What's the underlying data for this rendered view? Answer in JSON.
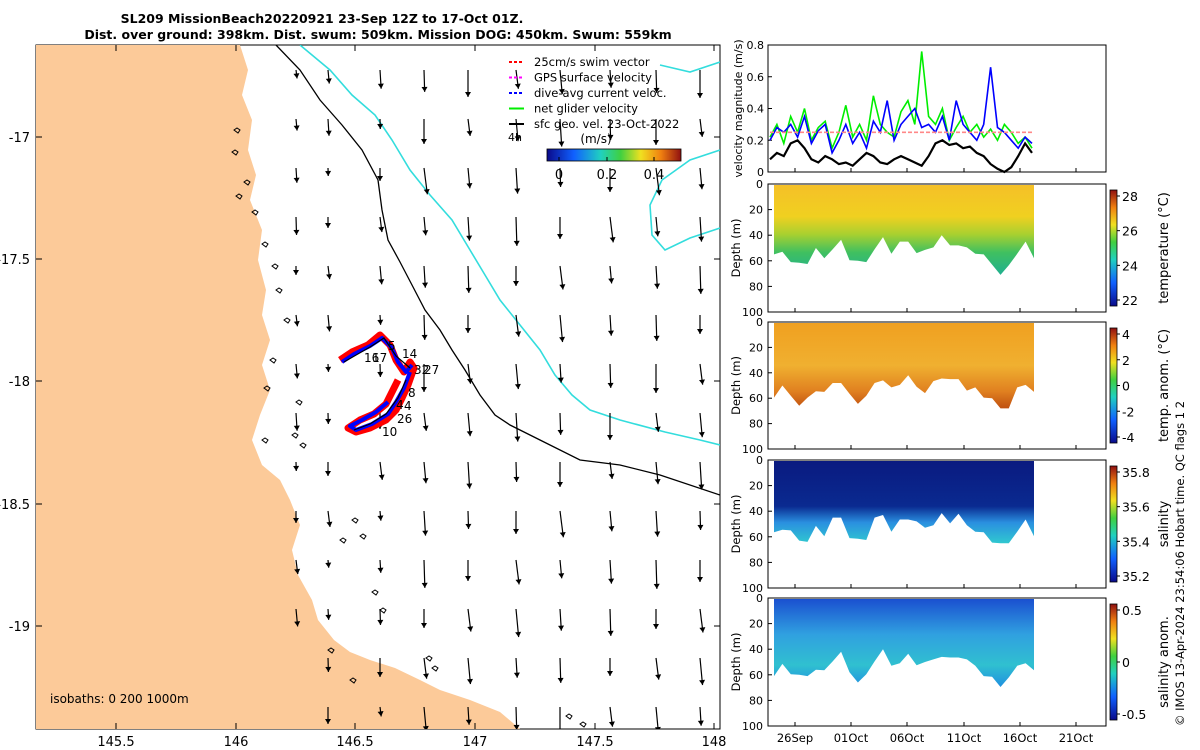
{
  "title": {
    "line1": "SL209 MissionBeach20220921 23-Sep 12Z to 17-Oct 01Z.",
    "line2": "Dist. over ground: 398km. Dist. swum: 509km. Mission DOG: 450km. Swum: 559km"
  },
  "colors": {
    "land": "#fcca99",
    "swim_vector": "#ff0000",
    "gps_velocity": "#ff00ff",
    "current_velocity": "#0000ff",
    "net_velocity": "#00ee00",
    "sfc_vector": "#000000",
    "isobath_shallow": "#000000",
    "isobath_deep": "#33dddd"
  },
  "map": {
    "x_ticks": [
      "145.5",
      "146",
      "146.5",
      "147",
      "147.5",
      "148"
    ],
    "y_ticks": [
      "-17",
      "-17.5",
      "-18",
      "-18.5",
      "-19"
    ],
    "legend": [
      {
        "label": "25cm/s swim vector",
        "color": "#ff0000"
      },
      {
        "label": "GPS surface velocity",
        "color": "#ff00ff"
      },
      {
        "label": "dive-avg current veloc.",
        "color": "#0000ff"
      },
      {
        "label": "net glider velocity",
        "color": "#00ee00"
      },
      {
        "label": "sfc geo. vel. 23-Oct-2022",
        "color": "#000000"
      }
    ],
    "arrow_scale_label": "4h",
    "colorbar_unit": "(m/s)",
    "colorbar_ticks": [
      "0",
      "0.2",
      "0.4"
    ],
    "isobaths_label": "isobaths: 0   200  1000m",
    "track_day_labels": [
      "5",
      "16",
      "17",
      "14",
      "32",
      "27",
      "8",
      "4",
      "4",
      "26",
      "10"
    ]
  },
  "chart_data": [
    {
      "type": "line",
      "title": "velocity magnitude",
      "ylabel": "velocity magnitude (m/s)",
      "ylim": [
        0,
        0.8
      ],
      "y_ticks": [
        "0",
        "0.2",
        "0.4",
        "0.6",
        "0.8"
      ],
      "series": [
        {
          "name": "net glider velocity",
          "color": "#00ee00",
          "values": [
            0.22,
            0.3,
            0.18,
            0.35,
            0.25,
            0.4,
            0.2,
            0.28,
            0.32,
            0.15,
            0.25,
            0.42,
            0.22,
            0.3,
            0.2,
            0.48,
            0.3,
            0.25,
            0.22,
            0.38,
            0.45,
            0.3,
            0.76,
            0.35,
            0.3,
            0.4,
            0.2,
            0.28,
            0.35,
            0.25,
            0.3,
            0.22,
            0.27,
            0.2,
            0.3,
            0.25,
            0.18,
            0.22,
            0.15
          ]
        },
        {
          "name": "dive-avg current",
          "color": "#0000ff",
          "values": [
            0.2,
            0.28,
            0.25,
            0.3,
            0.22,
            0.35,
            0.18,
            0.26,
            0.3,
            0.12,
            0.2,
            0.3,
            0.18,
            0.25,
            0.15,
            0.32,
            0.25,
            0.45,
            0.2,
            0.3,
            0.35,
            0.4,
            0.28,
            0.3,
            0.25,
            0.35,
            0.2,
            0.45,
            0.3,
            0.25,
            0.2,
            0.3,
            0.66,
            0.28,
            0.25,
            0.2,
            0.15,
            0.22,
            0.18
          ]
        },
        {
          "name": "sfc geo. velocity",
          "color": "#000000",
          "values": [
            0.08,
            0.12,
            0.1,
            0.18,
            0.2,
            0.15,
            0.08,
            0.06,
            0.1,
            0.08,
            0.05,
            0.06,
            0.04,
            0.08,
            0.12,
            0.1,
            0.06,
            0.05,
            0.08,
            0.1,
            0.08,
            0.06,
            0.04,
            0.1,
            0.18,
            0.2,
            0.17,
            0.18,
            0.15,
            0.16,
            0.12,
            0.1,
            0.05,
            0.02,
            0.0,
            0.03,
            0.1,
            0.18,
            0.12
          ]
        },
        {
          "name": "25cm/s swim",
          "color": "#ff8888",
          "values": [
            0.25,
            0.25,
            0.25,
            0.25,
            0.25,
            0.25,
            0.25,
            0.25,
            0.25,
            0.25,
            0.25,
            0.25,
            0.25,
            0.25,
            0.25,
            0.25,
            0.25,
            0.25,
            0.25,
            0.25,
            0.25,
            0.25,
            0.25,
            0.25,
            0.25,
            0.25,
            0.25,
            0.25,
            0.25,
            0.25,
            0.25,
            0.25,
            0.25,
            0.25,
            0.25,
            0.25,
            0.25,
            0.25,
            0.25
          ]
        }
      ]
    },
    {
      "type": "heatmap",
      "title": "temperature",
      "ylabel": "Depth (m)",
      "colorbar_label": "temperature (°C)",
      "colorbar_ticks": [
        "28",
        "26",
        "24",
        "22"
      ],
      "y_ticks": [
        "0",
        "20",
        "40",
        "60",
        "80",
        "100"
      ]
    },
    {
      "type": "heatmap",
      "title": "temp. anom.",
      "ylabel": "Depth (m)",
      "colorbar_label": "temp. anom. (°C)",
      "colorbar_ticks": [
        "4",
        "2",
        "0",
        "-2",
        "-4"
      ],
      "y_ticks": [
        "0",
        "20",
        "40",
        "60",
        "80",
        "100"
      ]
    },
    {
      "type": "heatmap",
      "title": "salinity",
      "ylabel": "Depth (m)",
      "colorbar_label": "salinity",
      "colorbar_ticks": [
        "35.8",
        "35.6",
        "35.4",
        "35.2"
      ],
      "y_ticks": [
        "0",
        "20",
        "40",
        "60",
        "80",
        "100"
      ]
    },
    {
      "type": "heatmap",
      "title": "salinity anom.",
      "ylabel": "Depth (m)",
      "colorbar_label": "salinity anom.",
      "colorbar_ticks": [
        "0.5",
        "0",
        "-0.5"
      ],
      "y_ticks": [
        "0",
        "20",
        "40",
        "60",
        "80",
        "100"
      ],
      "x_ticks": [
        "26Sep",
        "01Oct",
        "06Oct",
        "11Oct",
        "16Oct",
        "21Oct"
      ]
    }
  ],
  "footer_note": "© IMOS 13-Apr-2024 23:54:06 Hobart time. QC flags 1  2"
}
